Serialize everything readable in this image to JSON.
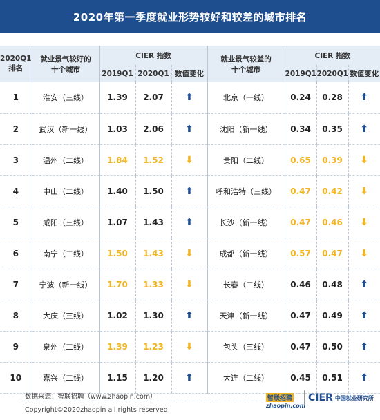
{
  "title": "2020年第一季度就业形势较好和较差的城市排名",
  "header": {
    "rank": "2020Q1\n排名",
    "rank_line1": "2020Q1",
    "rank_line2": "排名",
    "good_cities_line1": "就业景气较好的",
    "good_cities_line2": "十个城市",
    "bad_cities_line1": "就业景气较差的",
    "bad_cities_line2": "十个城市",
    "cier_index": "CIER 指数",
    "col_2019": "2019Q1",
    "col_2020": "2020Q1",
    "col_change": "数值变化"
  },
  "rows": [
    {
      "rank": "1",
      "good_city": "淮安（三线）",
      "g2019": "1.39",
      "g2020": "2.07",
      "g_dir": "up",
      "bad_city": "北京（一线）",
      "b2019": "0.24",
      "b2020": "0.28",
      "b_dir": "up"
    },
    {
      "rank": "2",
      "good_city": "武汉（新一线）",
      "g2019": "1.03",
      "g2020": "2.06",
      "g_dir": "up",
      "bad_city": "沈阳（新一线）",
      "b2019": "0.34",
      "b2020": "0.35",
      "b_dir": "up"
    },
    {
      "rank": "3",
      "good_city": "温州（二线）",
      "g2019": "1.84",
      "g2020": "1.52",
      "g_dir": "down",
      "bad_city": "贵阳（二线）",
      "b2019": "0.65",
      "b2020": "0.39",
      "b_dir": "down"
    },
    {
      "rank": "4",
      "good_city": "中山（二线）",
      "g2019": "1.40",
      "g2020": "1.50",
      "g_dir": "up",
      "bad_city": "呼和浩特（三线）",
      "b2019": "0.47",
      "b2020": "0.42",
      "b_dir": "down"
    },
    {
      "rank": "5",
      "good_city": "咸阳（三线）",
      "g2019": "1.07",
      "g2020": "1.43",
      "g_dir": "up",
      "bad_city": "长沙（新一线）",
      "b2019": "0.47",
      "b2020": "0.46",
      "b_dir": "down"
    },
    {
      "rank": "6",
      "good_city": "南宁（二线）",
      "g2019": "1.50",
      "g2020": "1.43",
      "g_dir": "down",
      "bad_city": "成都（新一线）",
      "b2019": "0.57",
      "b2020": "0.47",
      "b_dir": "down"
    },
    {
      "rank": "7",
      "good_city": "宁波（新一线）",
      "g2019": "1.70",
      "g2020": "1.33",
      "g_dir": "down",
      "bad_city": "长春（二线）",
      "b2019": "0.46",
      "b2020": "0.48",
      "b_dir": "up"
    },
    {
      "rank": "8",
      "good_city": "大庆（三线）",
      "g2019": "1.02",
      "g2020": "1.30",
      "g_dir": "up",
      "bad_city": "天津（新一线）",
      "b2019": "0.47",
      "b2020": "0.49",
      "b_dir": "up"
    },
    {
      "rank": "9",
      "good_city": "泉州（二线）",
      "g2019": "1.39",
      "g2020": "1.23",
      "g_dir": "down",
      "bad_city": "包头（三线）",
      "b2019": "0.47",
      "b2020": "0.50",
      "b_dir": "up"
    },
    {
      "rank": "10",
      "good_city": "嘉兴（二线）",
      "g2019": "1.15",
      "g2020": "1.20",
      "g_dir": "up",
      "bad_city": "大连（二线）",
      "b2019": "0.45",
      "b2020": "0.51",
      "b_dir": "up"
    }
  ],
  "arrows": {
    "up": "⬆",
    "down": "⬇"
  },
  "colors": {
    "header_bg": "#1f4e8f",
    "down": "#f2b522",
    "up_arrow": "#1f4e8f"
  },
  "footer": {
    "source": "数据来源：智联招聘（www.zhaopin.com）",
    "copyright": "Copyright©2020zhaopin all rights reserved",
    "logo_zhaopin_top": "智联招聘",
    "logo_zhaopin_bottom": "zhaopin.com",
    "logo_cier": "CIER",
    "logo_cier_cn": "中国就业研究所"
  }
}
